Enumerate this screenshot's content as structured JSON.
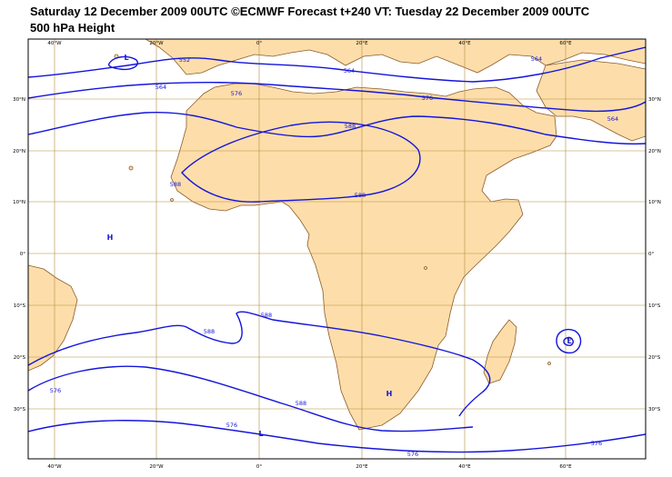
{
  "header": {
    "line1": "Saturday 12 December 2009 00UTC ©ECMWF Forecast t+240 VT: Tuesday 22 December 2009 00UTC",
    "line2": "500 hPa Height"
  },
  "colors": {
    "land": "#fddeaa",
    "coast": "#8c5a2b",
    "grid": "#b58b3f",
    "contour": "#1414dc",
    "frame": "#000000"
  },
  "map": {
    "lon_labels": [
      "40°W",
      "20°W",
      "0°",
      "20°E",
      "40°E",
      "60°E"
    ],
    "lat_labels": [
      "30°N",
      "20°N",
      "10°N",
      "0°",
      "10°S",
      "20°S",
      "30°S"
    ],
    "contour_labels": [
      "552",
      "564",
      "576",
      "588",
      "588",
      "564",
      "576",
      "588",
      "588",
      "588",
      "576",
      "576",
      "576",
      "576",
      "588",
      "564",
      "564"
    ],
    "pressure_centers": [
      "L",
      "H",
      "H",
      "L",
      "L"
    ]
  }
}
